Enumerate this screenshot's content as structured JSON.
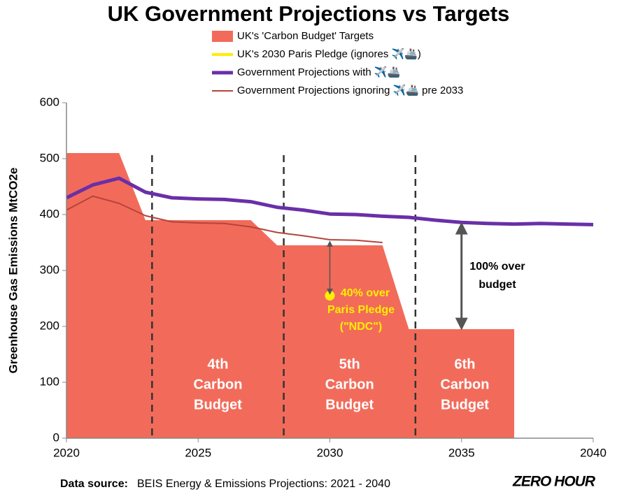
{
  "chart_data": {
    "type": "combo",
    "title": "UK Government Projections vs Targets",
    "y_label": "Greenhouse Gas Emissions MtCO2e",
    "xlim": [
      2020,
      2040
    ],
    "xticks": [
      2020,
      2025,
      2030,
      2035,
      2040
    ],
    "ylim": [
      0,
      600
    ],
    "yticks": [
      0,
      100,
      200,
      300,
      400,
      500,
      600
    ],
    "grid": false,
    "series": [
      {
        "name": "UK's 'Carbon Budget' Targets",
        "kind": "area",
        "color": "#f26b5a",
        "x": [
          2020,
          2022,
          2023,
          2027,
          2028,
          2032,
          2033,
          2037
        ],
        "values": [
          510,
          510,
          390,
          390,
          345,
          345,
          195,
          195
        ]
      },
      {
        "name": "UK's 2030 Paris Pledge (ignores ✈️🚢)",
        "kind": "point",
        "color": "#ffee00",
        "x": [
          2030
        ],
        "values": [
          255
        ]
      },
      {
        "name": "Government Projections with ✈️🚢",
        "kind": "line",
        "color": "#6a2fa8",
        "width": 5,
        "x": [
          2020,
          2021,
          2022,
          2023,
          2024,
          2025,
          2026,
          2027,
          2028,
          2029,
          2030,
          2031,
          2032,
          2033,
          2034,
          2035,
          2036,
          2037,
          2038,
          2039,
          2040
        ],
        "values": [
          430,
          453,
          465,
          440,
          430,
          428,
          427,
          423,
          413,
          408,
          401,
          400,
          397,
          395,
          390,
          386,
          384,
          383,
          384,
          383,
          382
        ]
      },
      {
        "name": "Government Projections ignoring ✈️🚢 pre 2033",
        "kind": "line",
        "color": "#b5443a",
        "width": 2,
        "x": [
          2020,
          2021,
          2022,
          2023,
          2024,
          2025,
          2026,
          2027,
          2028,
          2029,
          2030,
          2031,
          2032
        ],
        "values": [
          408,
          433,
          420,
          398,
          387,
          385,
          384,
          378,
          368,
          362,
          355,
          354,
          350
        ]
      }
    ],
    "dividers": [
      2023.25,
      2028.25,
      2033.25
    ],
    "budget_labels": [
      [
        "4th",
        "Carbon",
        "Budget"
      ],
      [
        "5th",
        "Carbon",
        "Budget"
      ],
      [
        "6th",
        "Carbon",
        "Budget"
      ]
    ],
    "paris_gap_label": [
      "40% over",
      "Paris Pledge",
      "(\"NDC\")"
    ],
    "budget_gap_label": [
      "100% over",
      "budget"
    ],
    "source_label": "Data source:",
    "source": "BEIS Energy & Emissions Projections: 2021 - 2040",
    "logo": "ZERO HOUR"
  }
}
